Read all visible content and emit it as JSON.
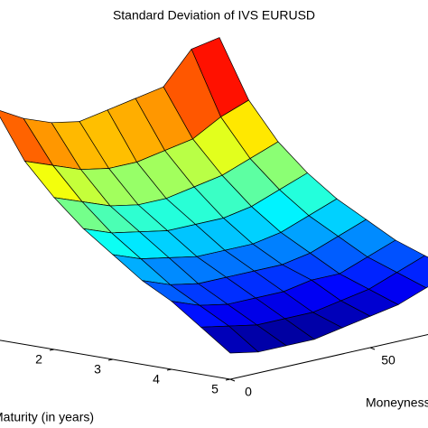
{
  "chart_data": {
    "type": "surface",
    "title": "Standard Deviation of IVS EURUSD",
    "xlabel": "Maturity (in years)",
    "ylabel": "Moneyness",
    "x": [
      1,
      1.5,
      2,
      2.5,
      3,
      3.5,
      4,
      4.5,
      5
    ],
    "y": [
      0,
      10,
      20,
      30,
      40,
      50,
      60,
      70,
      80
    ],
    "z": [
      [
        0.049,
        0.046,
        0.044,
        0.043,
        0.044,
        0.045,
        0.046,
        0.052,
        0.053
      ],
      [
        0.04,
        0.038,
        0.036,
        0.035,
        0.035,
        0.036,
        0.037,
        0.04,
        0.042
      ],
      [
        0.034,
        0.032,
        0.03,
        0.029,
        0.029,
        0.03,
        0.031,
        0.033,
        0.035
      ],
      [
        0.029,
        0.027,
        0.026,
        0.025,
        0.025,
        0.025,
        0.026,
        0.028,
        0.03
      ],
      [
        0.025,
        0.023,
        0.022,
        0.021,
        0.021,
        0.021,
        0.022,
        0.024,
        0.026
      ],
      [
        0.021,
        0.019,
        0.018,
        0.018,
        0.018,
        0.018,
        0.019,
        0.021,
        0.023
      ],
      [
        0.018,
        0.016,
        0.015,
        0.015,
        0.015,
        0.016,
        0.016,
        0.018,
        0.02
      ],
      [
        0.014,
        0.013,
        0.012,
        0.012,
        0.012,
        0.013,
        0.014,
        0.016,
        0.018
      ],
      [
        0.01,
        0.009,
        0.009,
        0.009,
        0.01,
        0.011,
        0.012,
        0.014,
        0.016
      ]
    ],
    "xlim": [
      1,
      5
    ],
    "ylim": [
      0,
      80
    ],
    "zlim": [
      0.005,
      0.055
    ],
    "xticks": [
      2,
      3,
      4,
      5
    ],
    "yticks": [
      0,
      50
    ],
    "colormap": "jet"
  }
}
